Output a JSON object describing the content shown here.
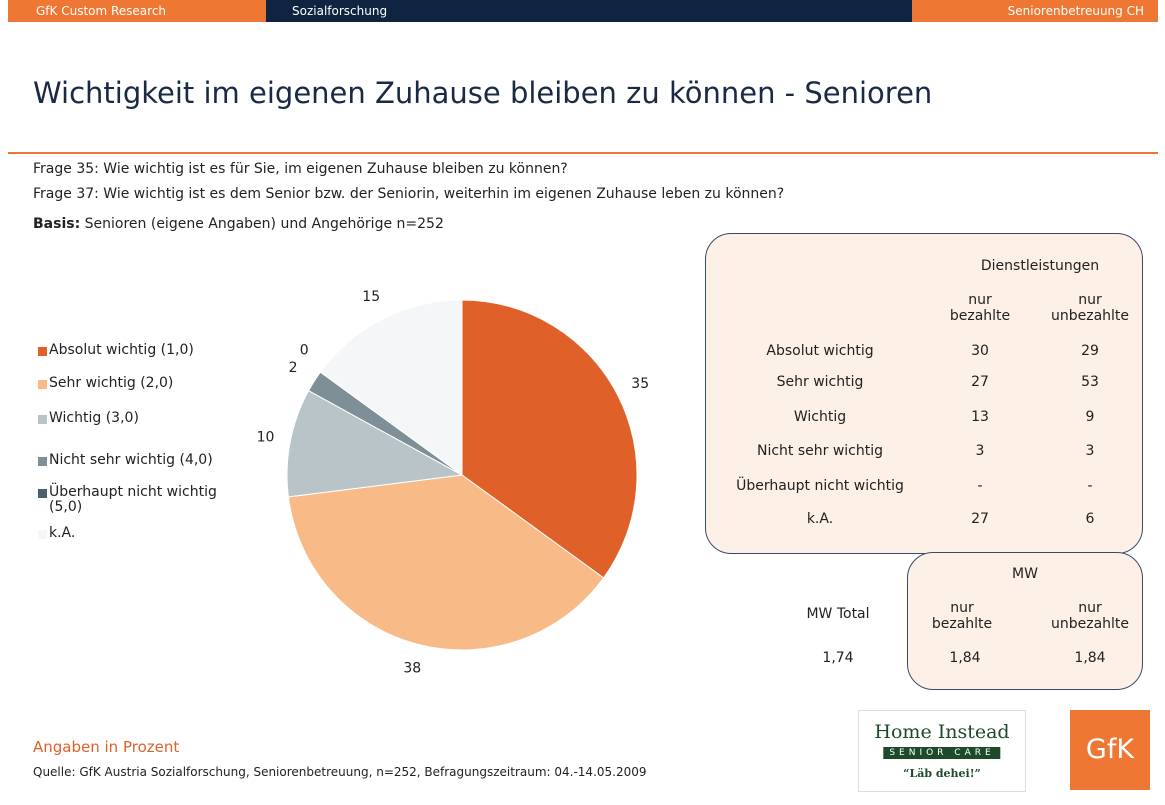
{
  "header": {
    "left": "GfK Custom Research",
    "middle": "Sozialforschung",
    "right": "Seniorenbetreuung CH"
  },
  "title": "Wichtigkeit im eigenen Zuhause bleiben zu können - Senioren",
  "questions": [
    "Frage 35: Wie wichtig ist es für Sie, im eigenen Zuhause bleiben zu können?",
    "Frage 37: Wie wichtig ist es dem Senior bzw. der Seniorin, weiterhin im eigenen Zuhause leben zu können?"
  ],
  "basis": {
    "label": "Basis:",
    "text": " Senioren (eigene Angaben) und Angehörige n=252"
  },
  "chart_data": {
    "type": "pie",
    "categories": [
      "Absolut wichtig (1,0)",
      "Sehr wichtig (2,0)",
      "Wichtig (3,0)",
      "Nicht sehr wichtig (4,0)",
      "Überhaupt nicht wichtig (5,0)",
      "k.A."
    ],
    "values": [
      35,
      38,
      10,
      2,
      0,
      15
    ],
    "colors": [
      "#e0602a",
      "#f8bb88",
      "#b9c4c8",
      "#7e8f97",
      "#4b5f6b",
      "#f4f6f8"
    ]
  },
  "table": {
    "title": "Dienstleistungen",
    "columns": [
      "nur bezahlte",
      "nur unbezahlte"
    ],
    "rows": [
      [
        "Absolut wichtig",
        30,
        29
      ],
      [
        "Sehr wichtig",
        27,
        53
      ],
      [
        "Wichtig",
        13,
        9
      ],
      [
        "Nicht sehr wichtig",
        3,
        3
      ],
      [
        "Überhaupt nicht wichtig",
        "-",
        "-"
      ],
      [
        "k.A.",
        27,
        6
      ]
    ]
  },
  "mw": {
    "title": "MW",
    "total_label": "MW Total",
    "total": "1,74",
    "columns": [
      "nur bezahlte",
      "nur unbezahlte"
    ],
    "values": [
      "1,84",
      "1,84"
    ]
  },
  "footer": {
    "note": "Angaben in Prozent",
    "source": "Quelle: GfK Austria Sozialforschung, Seniorenbetreuung, n=252, Befragungszeitraum: 04.-14.05.2009"
  },
  "logos": {
    "home": "Home Instead",
    "senior": "SENIOR CARE",
    "slogan": "“Läb dehei!”",
    "gfk": "GfK"
  }
}
